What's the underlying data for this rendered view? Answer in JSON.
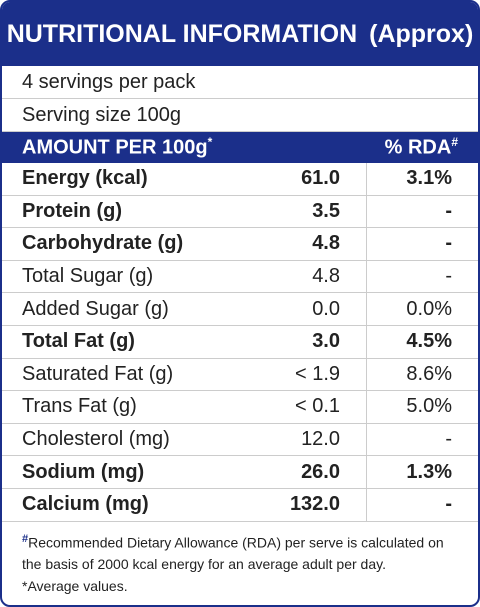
{
  "header": {
    "title": "NUTRITIONAL INFORMATION",
    "suffix": "(Approx)"
  },
  "servings": [
    "4 servings per pack",
    "Serving size 100g"
  ],
  "columns": {
    "amount": "AMOUNT PER 100g",
    "amount_mark": "*",
    "rda": "% RDA",
    "rda_mark": "#"
  },
  "table": {
    "rows": [
      {
        "name": "Energy (kcal)",
        "value": "61.0",
        "rda": "3.1%",
        "bold": true
      },
      {
        "name": "Protein (g)",
        "value": "3.5",
        "rda": "-",
        "bold": true
      },
      {
        "name": "Carbohydrate (g)",
        "value": "4.8",
        "rda": "-",
        "bold": true
      },
      {
        "name": "Total Sugar (g)",
        "value": "4.8",
        "rda": "-",
        "bold": false
      },
      {
        "name": "Added Sugar (g)",
        "value": "0.0",
        "rda": "0.0%",
        "bold": false
      },
      {
        "name": "Total Fat (g)",
        "value": "3.0",
        "rda": "4.5%",
        "bold": true
      },
      {
        "name": "Saturated Fat (g)",
        "value": "< 1.9",
        "rda": "8.6%",
        "bold": false
      },
      {
        "name": "Trans Fat (g)",
        "value": "< 0.1",
        "rda": "5.0%",
        "bold": false
      },
      {
        "name": "Cholesterol (mg)",
        "value": "12.0",
        "rda": "-",
        "bold": false
      },
      {
        "name": "Sodium (mg)",
        "value": "26.0",
        "rda": "1.3%",
        "bold": true
      },
      {
        "name": "Calcium (mg)",
        "value": "132.0",
        "rda": "-",
        "bold": true
      }
    ]
  },
  "footnote": {
    "mark": "#",
    "text": "Recommended Dietary Allowance (RDA) per serve is calculated on the basis of 2000 kcal energy for an average adult per day.",
    "note": "*Average values."
  }
}
